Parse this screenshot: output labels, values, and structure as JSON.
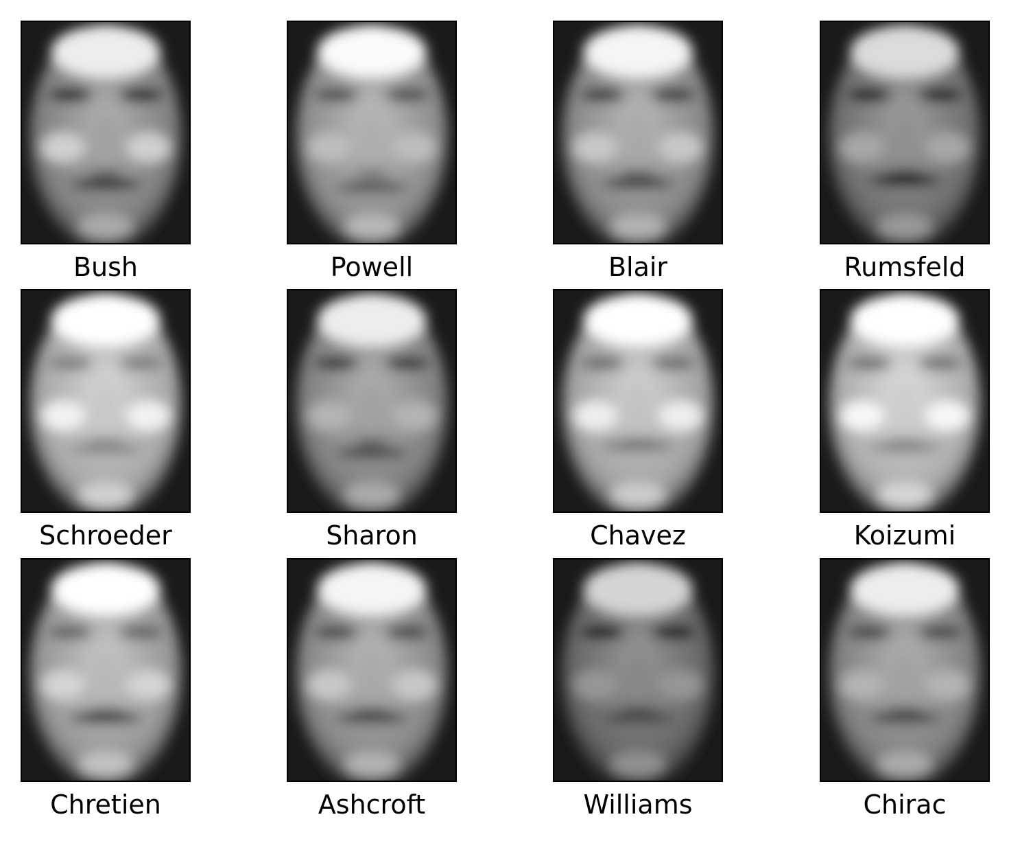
{
  "faces": [
    {
      "name": "Bush"
    },
    {
      "name": "Powell"
    },
    {
      "name": "Blair"
    },
    {
      "name": "Rumsfeld"
    },
    {
      "name": "Schroeder"
    },
    {
      "name": "Sharon"
    },
    {
      "name": "Chavez"
    },
    {
      "name": "Koizumi"
    },
    {
      "name": "Chretien"
    },
    {
      "name": "Ashcroft"
    },
    {
      "name": "Williams"
    },
    {
      "name": "Chirac"
    }
  ]
}
